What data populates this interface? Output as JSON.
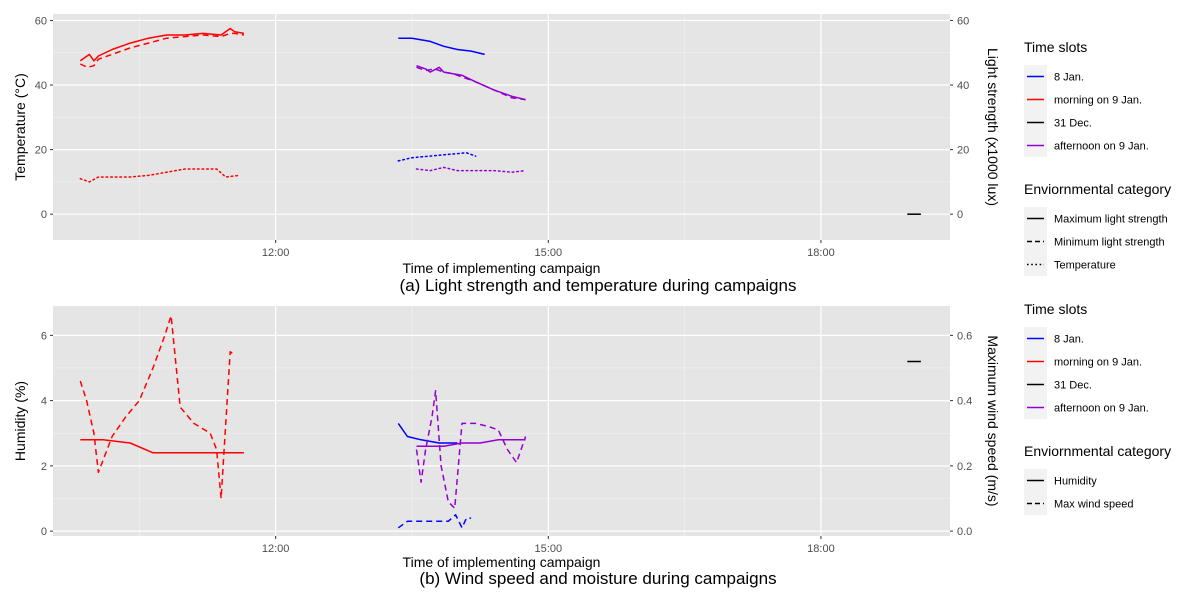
{
  "chart_data": [
    {
      "type": "line",
      "caption": "(a) Light strength and temperature during campaigns",
      "xlabel": "Time of implementing campaign",
      "ylabel": "Temperature (°C)",
      "ylabel_right": "Light strength (x1000 lux)",
      "x_ticks": [
        "12:00",
        "15:00",
        "18:00"
      ],
      "x_tick_hours": [
        12,
        15,
        18
      ],
      "xlim_hours": [
        9.55,
        19.42
      ],
      "ylim": [
        -8,
        62
      ],
      "y_ticks": [
        0,
        20,
        40,
        60
      ],
      "y_ticks_right": [
        0,
        20,
        40,
        60
      ],
      "grid": true,
      "legend_position": "right",
      "legend_groups": [
        {
          "title": "Time slots",
          "items": [
            {
              "label": "8 Jan.",
              "color": "#0000ff",
              "dash": "solid"
            },
            {
              "label": "morning on 9 Jan.",
              "color": "#ff0000",
              "dash": "solid"
            },
            {
              "label": "31 Dec.",
              "color": "#000000",
              "dash": "solid"
            },
            {
              "label": "afternoon on 9 Jan.",
              "color": "#9400d3",
              "dash": "solid"
            }
          ]
        },
        {
          "title": "Enviornmental category",
          "items": [
            {
              "label": "Maximum light strength",
              "color": "#000000",
              "dash": "solid"
            },
            {
              "label": "Minimum light strength",
              "color": "#000000",
              "dash": "dashed"
            },
            {
              "label": "Temperature",
              "color": "#000000",
              "dash": "dotted"
            }
          ]
        }
      ],
      "series": [
        {
          "slot": "morning on 9 Jan.",
          "category": "Maximum light strength",
          "color": "#ff0000",
          "dash": "solid",
          "x": [
            9.85,
            9.95,
            10.0,
            10.05,
            10.2,
            10.4,
            10.6,
            10.8,
            11.0,
            11.2,
            11.4,
            11.5,
            11.55,
            11.65
          ],
          "y": [
            47.5,
            49.5,
            47.5,
            49,
            51,
            53,
            54.5,
            55.5,
            55.5,
            56,
            55.5,
            57.5,
            56.5,
            56
          ]
        },
        {
          "slot": "morning on 9 Jan.",
          "category": "Minimum light strength",
          "color": "#ff0000",
          "dash": "dashed",
          "x": [
            9.85,
            9.93,
            10.0,
            10.05,
            10.2,
            10.4,
            10.6,
            10.8,
            11.0,
            11.2,
            11.4,
            11.5,
            11.55,
            11.65
          ],
          "y": [
            46.5,
            45.5,
            46,
            48,
            49.5,
            51.5,
            53,
            54.5,
            55,
            55.5,
            55,
            56,
            56,
            55.5
          ]
        },
        {
          "slot": "morning on 9 Jan.",
          "category": "Temperature",
          "color": "#ff0000",
          "dash": "dotted",
          "x": [
            9.85,
            9.95,
            10.05,
            10.2,
            10.4,
            10.6,
            10.8,
            11.0,
            11.2,
            11.35,
            11.45,
            11.6
          ],
          "y": [
            11,
            10,
            11.5,
            11.5,
            11.5,
            12,
            13,
            14,
            14,
            14,
            11.5,
            12
          ]
        },
        {
          "slot": "8 Jan.",
          "category": "Maximum light strength",
          "color": "#0000ff",
          "dash": "solid",
          "x": [
            13.35,
            13.5,
            13.7,
            13.85,
            14.0,
            14.15,
            14.3
          ],
          "y": [
            54.5,
            54.5,
            53.5,
            52,
            51,
            50.5,
            49.5
          ]
        },
        {
          "slot": "8 Jan.",
          "category": "Temperature",
          "color": "#0000ff",
          "dash": "dotted",
          "x": [
            13.35,
            13.5,
            13.7,
            13.9,
            14.1,
            14.2
          ],
          "y": [
            16.5,
            17.5,
            18,
            18.5,
            19,
            18
          ]
        },
        {
          "slot": "afternoon on 9 Jan.",
          "category": "Maximum light strength",
          "color": "#9400d3",
          "dash": "solid",
          "x": [
            13.55,
            13.65,
            13.7,
            13.8,
            13.85,
            13.95,
            14.05,
            14.2,
            14.4,
            14.6,
            14.75
          ],
          "y": [
            46,
            45,
            44,
            45.5,
            44,
            43.5,
            43,
            41,
            38.5,
            36.5,
            35.5
          ]
        },
        {
          "slot": "afternoon on 9 Jan.",
          "category": "Minimum light strength",
          "color": "#9400d3",
          "dash": "dashed",
          "x": [
            13.55,
            13.65,
            13.75,
            13.85,
            13.95,
            14.05,
            14.2,
            14.4,
            14.6,
            14.75
          ],
          "y": [
            45.5,
            44.5,
            45,
            44,
            43.5,
            42.5,
            41,
            38.5,
            36,
            35.5
          ]
        },
        {
          "slot": "afternoon on 9 Jan.",
          "category": "Temperature",
          "color": "#9400d3",
          "dash": "dotted",
          "x": [
            13.55,
            13.7,
            13.85,
            14.0,
            14.2,
            14.4,
            14.6,
            14.75
          ],
          "y": [
            14,
            13.5,
            14.5,
            13.5,
            13.5,
            13.5,
            13,
            13.5
          ]
        },
        {
          "slot": "31 Dec.",
          "category": "Maximum light strength",
          "color": "#000000",
          "dash": "solid",
          "x": [
            18.95,
            19.1
          ],
          "y": [
            0,
            0
          ]
        }
      ]
    },
    {
      "type": "line",
      "caption": "(b) Wind speed and moisture during campaigns",
      "xlabel": "Time of implementing campaign",
      "ylabel": "Humidity (%)",
      "ylabel_right": "Maximum wind speed (m/s)",
      "x_ticks": [
        "12:00",
        "15:00",
        "18:00"
      ],
      "x_tick_hours": [
        12,
        15,
        18
      ],
      "xlim_hours": [
        9.55,
        19.42
      ],
      "ylim": [
        -0.15,
        6.9
      ],
      "y_ticks": [
        0,
        2,
        4,
        6
      ],
      "y_ticks_right": [
        "0.0",
        "0.2",
        "0.4",
        "0.6"
      ],
      "right_axis_scale": 0.1,
      "grid": true,
      "legend_position": "right",
      "legend_groups": [
        {
          "title": "Time slots",
          "items": [
            {
              "label": "8 Jan.",
              "color": "#0000ff",
              "dash": "solid"
            },
            {
              "label": "morning on 9 Jan.",
              "color": "#ff0000",
              "dash": "solid"
            },
            {
              "label": "31 Dec.",
              "color": "#000000",
              "dash": "solid"
            },
            {
              "label": "afternoon on 9 Jan.",
              "color": "#9400d3",
              "dash": "solid"
            }
          ]
        },
        {
          "title": "Enviornmental category",
          "items": [
            {
              "label": "Humidity",
              "color": "#000000",
              "dash": "solid"
            },
            {
              "label": "Max wind speed",
              "color": "#000000",
              "dash": "dashed"
            }
          ]
        }
      ],
      "series": [
        {
          "slot": "morning on 9 Jan.",
          "category": "Humidity",
          "color": "#ff0000",
          "dash": "solid",
          "x": [
            9.85,
            10.1,
            10.4,
            10.65,
            10.9,
            11.2,
            11.4,
            11.65
          ],
          "y": [
            2.8,
            2.8,
            2.7,
            2.4,
            2.4,
            2.4,
            2.4,
            2.4
          ]
        },
        {
          "slot": "morning on 9 Jan.",
          "category": "Max wind speed",
          "color": "#ff0000",
          "dash": "dashed",
          "x": [
            9.85,
            9.92,
            10.0,
            10.05,
            10.2,
            10.35,
            10.5,
            10.65,
            10.78,
            10.85,
            10.95,
            11.1,
            11.28,
            11.35,
            11.4,
            11.5,
            11.55
          ],
          "y": [
            4.6,
            4.0,
            3.0,
            1.8,
            2.9,
            3.5,
            4.0,
            5.0,
            6.0,
            6.6,
            3.8,
            3.3,
            3.0,
            2.5,
            1.0,
            5.5,
            5.4
          ]
        },
        {
          "slot": "8 Jan.",
          "category": "Humidity",
          "color": "#0000ff",
          "dash": "solid",
          "x": [
            13.35,
            13.45,
            13.6,
            13.8,
            14.0
          ],
          "y": [
            3.3,
            2.9,
            2.8,
            2.7,
            2.7
          ]
        },
        {
          "slot": "8 Jan.",
          "category": "Max wind speed",
          "color": "#0000ff",
          "dash": "dashed",
          "x": [
            13.35,
            13.45,
            13.65,
            13.9,
            13.98,
            14.05,
            14.1,
            14.15
          ],
          "y": [
            0.1,
            0.3,
            0.3,
            0.3,
            0.5,
            0.1,
            0.4,
            0.4
          ]
        },
        {
          "slot": "afternoon on 9 Jan.",
          "category": "Humidity",
          "color": "#9400d3",
          "dash": "solid",
          "x": [
            13.55,
            13.7,
            13.85,
            14.05,
            14.25,
            14.45,
            14.6,
            14.75
          ],
          "y": [
            2.6,
            2.6,
            2.6,
            2.7,
            2.7,
            2.8,
            2.8,
            2.8
          ]
        },
        {
          "slot": "afternoon on 9 Jan.",
          "category": "Max wind speed",
          "color": "#9400d3",
          "dash": "dashed",
          "x": [
            13.55,
            13.6,
            13.65,
            13.72,
            13.76,
            13.82,
            13.9,
            13.97,
            14.05,
            14.2,
            14.35,
            14.45,
            14.55,
            14.65,
            14.75
          ],
          "y": [
            2.5,
            1.5,
            2.5,
            3.5,
            4.3,
            2.0,
            0.9,
            0.7,
            3.3,
            3.3,
            3.2,
            3.1,
            2.5,
            2.1,
            2.9
          ]
        },
        {
          "slot": "31 Dec.",
          "category": "Max wind speed",
          "color": "#000000",
          "dash": "solid",
          "x": [
            18.95,
            19.1
          ],
          "y": [
            5.2,
            5.2
          ]
        }
      ]
    }
  ]
}
